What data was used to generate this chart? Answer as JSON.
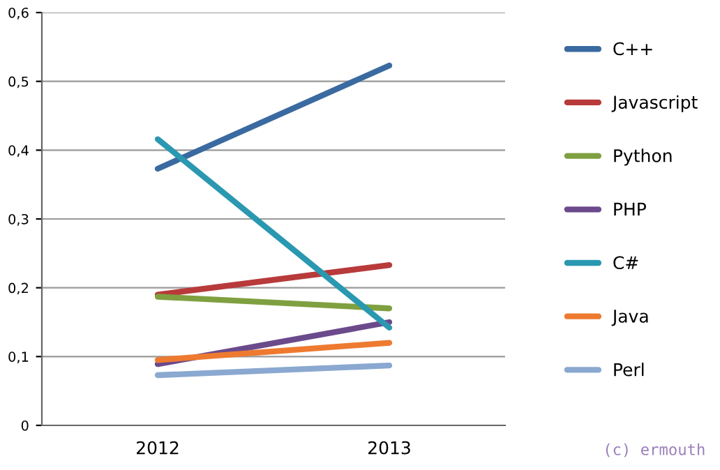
{
  "chart_data": {
    "type": "line",
    "categories": [
      "2012",
      "2013"
    ],
    "series": [
      {
        "name": "C++",
        "color": "#3a6aa0",
        "values": [
          0.373,
          0.523
        ]
      },
      {
        "name": "Javascript",
        "color": "#b83a3a",
        "values": [
          0.19,
          0.233
        ]
      },
      {
        "name": "Python",
        "color": "#7fa040",
        "values": [
          0.187,
          0.17
        ]
      },
      {
        "name": "PHP",
        "color": "#6b4a8c",
        "values": [
          0.089,
          0.15
        ]
      },
      {
        "name": "C#",
        "color": "#2a98b0",
        "values": [
          0.416,
          0.142
        ]
      },
      {
        "name": "Java",
        "color": "#ee7a30",
        "values": [
          0.095,
          0.12
        ]
      },
      {
        "name": "Perl",
        "color": "#8aa8d0",
        "values": [
          0.073,
          0.087
        ]
      }
    ],
    "ylim": [
      0,
      0.6
    ],
    "yticks": [
      {
        "value": 0,
        "label": "0"
      },
      {
        "value": 0.1,
        "label": "0,1"
      },
      {
        "value": 0.2,
        "label": "0,2"
      },
      {
        "value": 0.3,
        "label": "0,3"
      },
      {
        "value": 0.4,
        "label": "0,4"
      },
      {
        "value": 0.5,
        "label": "0,5"
      },
      {
        "value": 0.6,
        "label": "0,6"
      }
    ],
    "grid": "y",
    "legend": "right",
    "marker": "none",
    "line_style": "solid",
    "annotations": [
      "(c) ermouth"
    ]
  }
}
